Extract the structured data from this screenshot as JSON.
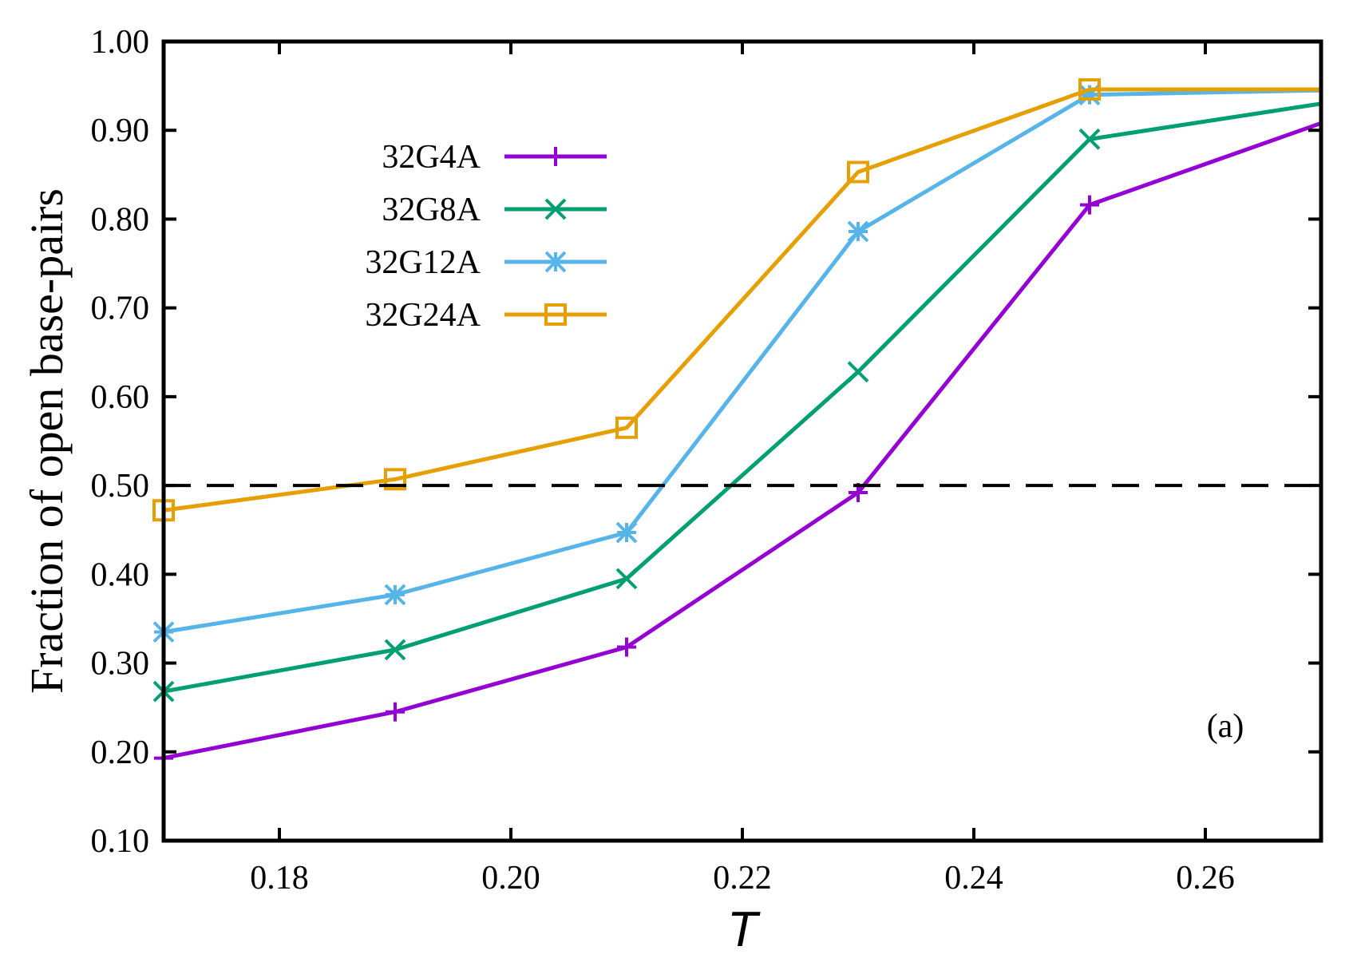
{
  "chart_data": {
    "type": "line",
    "title": "",
    "xlabel": "T",
    "ylabel": "Fraction of open base-pairs",
    "xlim": [
      0.17,
      0.27
    ],
    "ylim": [
      0.1,
      1.0
    ],
    "xticks": [
      0.18,
      0.2,
      0.22,
      0.24,
      0.26
    ],
    "xtick_labels": [
      "0.18",
      "0.20",
      "0.22",
      "0.24",
      "0.26"
    ],
    "yticks": [
      0.1,
      0.2,
      0.3,
      0.4,
      0.5,
      0.6,
      0.7,
      0.8,
      0.9,
      1.0
    ],
    "ytick_labels": [
      "0.10",
      "0.20",
      "0.30",
      "0.40",
      "0.50",
      "0.60",
      "0.70",
      "0.80",
      "0.90",
      "1.00"
    ],
    "grid": false,
    "legend_position": "top-left",
    "reference_line": {
      "y": 0.5,
      "style": "dashed",
      "color": "#000000"
    },
    "annotation": "(a)",
    "x": [
      0.17,
      0.19,
      0.21,
      0.23,
      0.25,
      0.27
    ],
    "series": [
      {
        "name": "32G4A",
        "marker": "plus",
        "color": "#9400d3",
        "values": [
          0.193,
          0.245,
          0.318,
          0.492,
          0.816,
          0.908
        ]
      },
      {
        "name": "32G8A",
        "marker": "cross",
        "color": "#009e73",
        "values": [
          0.268,
          0.315,
          0.395,
          0.628,
          0.89,
          0.93
        ]
      },
      {
        "name": "32G12A",
        "marker": "star",
        "color": "#56b4e9",
        "values": [
          0.335,
          0.377,
          0.447,
          0.786,
          0.94,
          0.945
        ]
      },
      {
        "name": "32G24A",
        "marker": "square",
        "color": "#e69f00",
        "values": [
          0.472,
          0.507,
          0.565,
          0.853,
          0.946,
          0.946
        ]
      }
    ]
  }
}
